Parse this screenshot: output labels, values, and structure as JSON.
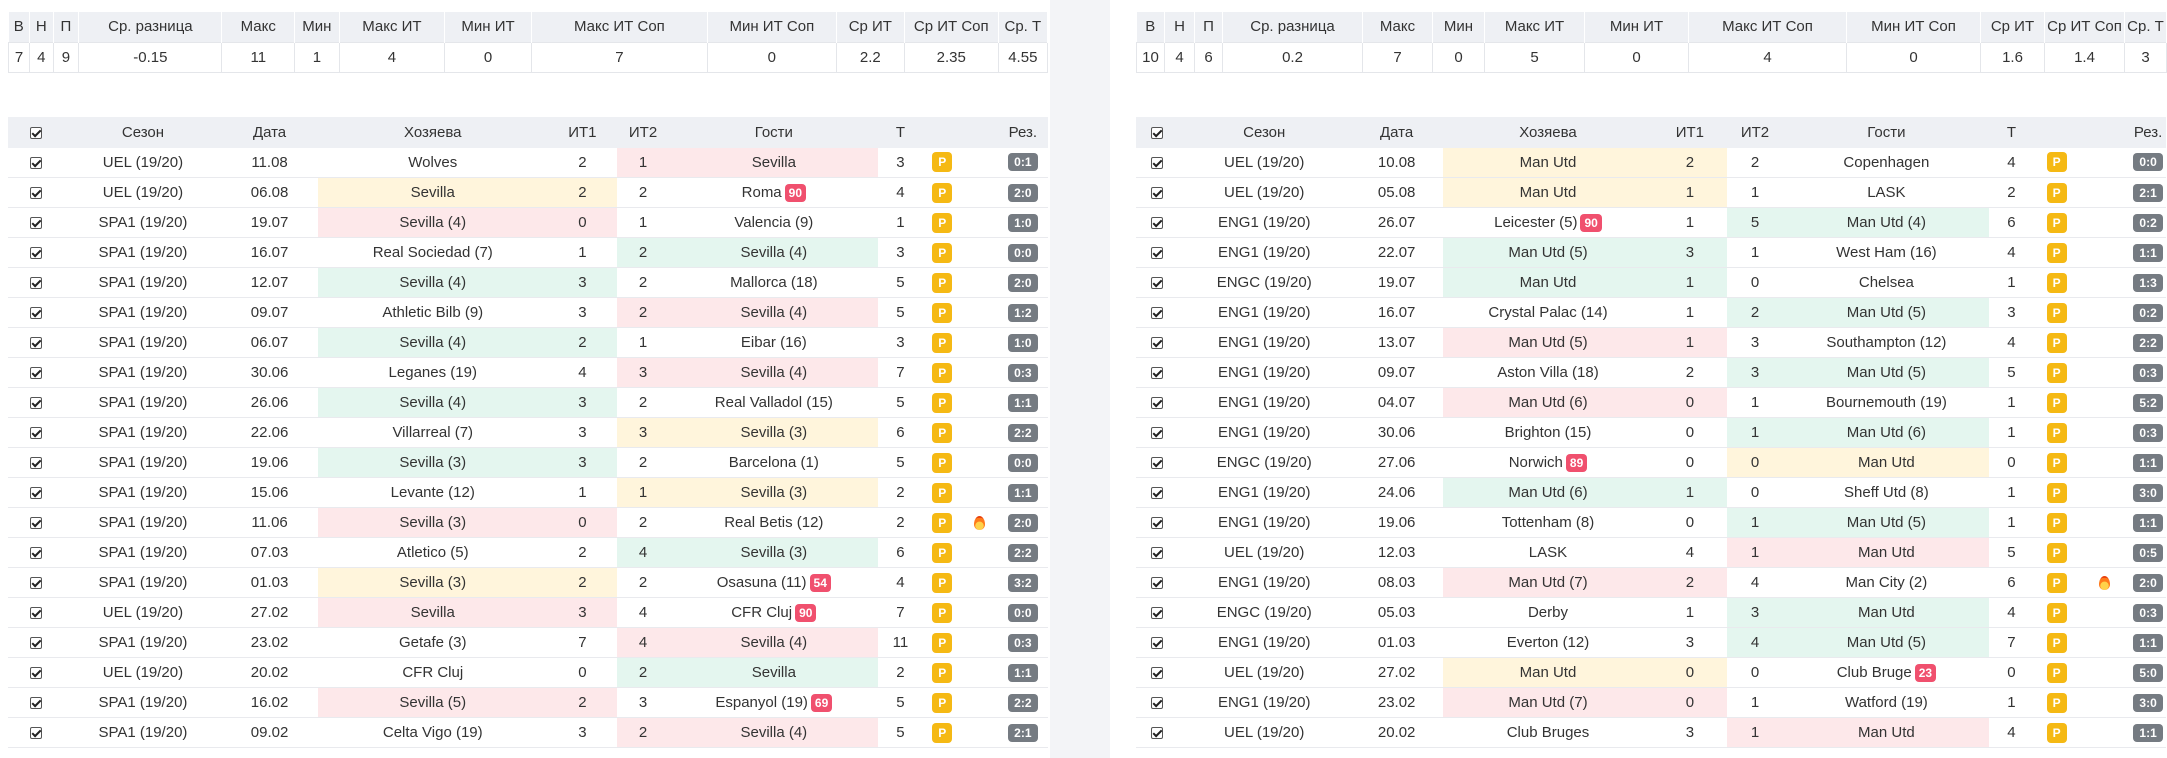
{
  "left": {
    "summary_headers": [
      "В",
      "Н",
      "П",
      "Ср. разница",
      "Макс",
      "Мин",
      "Макс ИТ",
      "Мин ИТ",
      "Макс ИТ Соп",
      "Мин ИТ Соп",
      "Ср ИТ",
      "Ср ИТ Соп",
      "Ср. Т"
    ],
    "summary_values": [
      "7",
      "4",
      "9",
      "-0.15",
      "11",
      "1",
      "4",
      "0",
      "7",
      "0",
      "2.2",
      "2.35",
      "4.55"
    ],
    "game_headers": [
      "Сезон",
      "Дата",
      "Хозяева",
      "ИТ1",
      "ИТ2",
      "Гости",
      "Т",
      "Рез."
    ],
    "rows": [
      {
        "season": "UEL (19/20)",
        "date": "11.08",
        "home": "Wolves",
        "home_hl": "",
        "home_badge": "",
        "it1": "2",
        "it1_hl": "",
        "it2": "1",
        "it2_hl": "r",
        "away": "Sevilla",
        "away_hl": "r",
        "away_badge": "",
        "t": "3",
        "fire": false,
        "res": "0:1"
      },
      {
        "season": "UEL (19/20)",
        "date": "06.08",
        "home": "Sevilla",
        "home_hl": "y",
        "home_badge": "",
        "it1": "2",
        "it1_hl": "y",
        "it2": "2",
        "it2_hl": "",
        "away": "Roma",
        "away_hl": "",
        "away_badge": "90",
        "t": "4",
        "fire": false,
        "res": "2:0"
      },
      {
        "season": "SPA1 (19/20)",
        "date": "19.07",
        "home": "Sevilla (4)",
        "home_hl": "r",
        "home_badge": "",
        "it1": "0",
        "it1_hl": "r",
        "it2": "1",
        "it2_hl": "",
        "away": "Valencia (9)",
        "away_hl": "",
        "away_badge": "",
        "t": "1",
        "fire": false,
        "res": "1:0"
      },
      {
        "season": "SPA1 (19/20)",
        "date": "16.07",
        "home": "Real Sociedad (7)",
        "home_hl": "",
        "home_badge": "",
        "it1": "1",
        "it1_hl": "",
        "it2": "2",
        "it2_hl": "g",
        "away": "Sevilla (4)",
        "away_hl": "g",
        "away_badge": "",
        "t": "3",
        "fire": false,
        "res": "0:0"
      },
      {
        "season": "SPA1 (19/20)",
        "date": "12.07",
        "home": "Sevilla (4)",
        "home_hl": "g",
        "home_badge": "",
        "it1": "3",
        "it1_hl": "g",
        "it2": "2",
        "it2_hl": "",
        "away": "Mallorca (18)",
        "away_hl": "",
        "away_badge": "",
        "t": "5",
        "fire": false,
        "res": "2:0"
      },
      {
        "season": "SPA1 (19/20)",
        "date": "09.07",
        "home": "Athletic Bilb (9)",
        "home_hl": "",
        "home_badge": "",
        "it1": "3",
        "it1_hl": "",
        "it2": "2",
        "it2_hl": "r",
        "away": "Sevilla (4)",
        "away_hl": "r",
        "away_badge": "",
        "t": "5",
        "fire": false,
        "res": "1:2"
      },
      {
        "season": "SPA1 (19/20)",
        "date": "06.07",
        "home": "Sevilla (4)",
        "home_hl": "g",
        "home_badge": "",
        "it1": "2",
        "it1_hl": "g",
        "it2": "1",
        "it2_hl": "",
        "away": "Eibar (16)",
        "away_hl": "",
        "away_badge": "",
        "t": "3",
        "fire": false,
        "res": "1:0"
      },
      {
        "season": "SPA1 (19/20)",
        "date": "30.06",
        "home": "Leganes (19)",
        "home_hl": "",
        "home_badge": "",
        "it1": "4",
        "it1_hl": "",
        "it2": "3",
        "it2_hl": "r",
        "away": "Sevilla (4)",
        "away_hl": "r",
        "away_badge": "",
        "t": "7",
        "fire": false,
        "res": "0:3"
      },
      {
        "season": "SPA1 (19/20)",
        "date": "26.06",
        "home": "Sevilla (4)",
        "home_hl": "g",
        "home_badge": "",
        "it1": "3",
        "it1_hl": "g",
        "it2": "2",
        "it2_hl": "",
        "away": "Real Valladol (15)",
        "away_hl": "",
        "away_badge": "",
        "t": "5",
        "fire": false,
        "res": "1:1"
      },
      {
        "season": "SPA1 (19/20)",
        "date": "22.06",
        "home": "Villarreal (7)",
        "home_hl": "",
        "home_badge": "",
        "it1": "3",
        "it1_hl": "",
        "it2": "3",
        "it2_hl": "y",
        "away": "Sevilla (3)",
        "away_hl": "y",
        "away_badge": "",
        "t": "6",
        "fire": false,
        "res": "2:2"
      },
      {
        "season": "SPA1 (19/20)",
        "date": "19.06",
        "home": "Sevilla (3)",
        "home_hl": "g",
        "home_badge": "",
        "it1": "3",
        "it1_hl": "g",
        "it2": "2",
        "it2_hl": "",
        "away": "Barcelona (1)",
        "away_hl": "",
        "away_badge": "",
        "t": "5",
        "fire": false,
        "res": "0:0"
      },
      {
        "season": "SPA1 (19/20)",
        "date": "15.06",
        "home": "Levante (12)",
        "home_hl": "",
        "home_badge": "",
        "it1": "1",
        "it1_hl": "",
        "it2": "1",
        "it2_hl": "y",
        "away": "Sevilla (3)",
        "away_hl": "y",
        "away_badge": "",
        "t": "2",
        "fire": false,
        "res": "1:1"
      },
      {
        "season": "SPA1 (19/20)",
        "date": "11.06",
        "home": "Sevilla (3)",
        "home_hl": "r",
        "home_badge": "",
        "it1": "0",
        "it1_hl": "r",
        "it2": "2",
        "it2_hl": "",
        "away": "Real Betis (12)",
        "away_hl": "",
        "away_badge": "",
        "t": "2",
        "fire": true,
        "res": "2:0"
      },
      {
        "season": "SPA1 (19/20)",
        "date": "07.03",
        "home": "Atletico (5)",
        "home_hl": "",
        "home_badge": "",
        "it1": "2",
        "it1_hl": "",
        "it2": "4",
        "it2_hl": "g",
        "away": "Sevilla (3)",
        "away_hl": "g",
        "away_badge": "",
        "t": "6",
        "fire": false,
        "res": "2:2"
      },
      {
        "season": "SPA1 (19/20)",
        "date": "01.03",
        "home": "Sevilla (3)",
        "home_hl": "y",
        "home_badge": "",
        "it1": "2",
        "it1_hl": "y",
        "it2": "2",
        "it2_hl": "",
        "away": "Osasuna (11)",
        "away_hl": "",
        "away_badge": "54",
        "t": "4",
        "fire": false,
        "res": "3:2"
      },
      {
        "season": "UEL (19/20)",
        "date": "27.02",
        "home": "Sevilla",
        "home_hl": "r",
        "home_badge": "",
        "it1": "3",
        "it1_hl": "r",
        "it2": "4",
        "it2_hl": "",
        "away": "CFR Cluj",
        "away_hl": "",
        "away_badge": "90",
        "t": "7",
        "fire": false,
        "res": "0:0"
      },
      {
        "season": "SPA1 (19/20)",
        "date": "23.02",
        "home": "Getafe (3)",
        "home_hl": "",
        "home_badge": "",
        "it1": "7",
        "it1_hl": "",
        "it2": "4",
        "it2_hl": "r",
        "away": "Sevilla (4)",
        "away_hl": "r",
        "away_badge": "",
        "t": "11",
        "fire": false,
        "res": "0:3"
      },
      {
        "season": "UEL (19/20)",
        "date": "20.02",
        "home": "CFR Cluj",
        "home_hl": "",
        "home_badge": "",
        "it1": "0",
        "it1_hl": "",
        "it2": "2",
        "it2_hl": "g",
        "away": "Sevilla",
        "away_hl": "g",
        "away_badge": "",
        "t": "2",
        "fire": false,
        "res": "1:1"
      },
      {
        "season": "SPA1 (19/20)",
        "date": "16.02",
        "home": "Sevilla (5)",
        "home_hl": "r",
        "home_badge": "",
        "it1": "2",
        "it1_hl": "r",
        "it2": "3",
        "it2_hl": "",
        "away": "Espanyol (19)",
        "away_hl": "",
        "away_badge": "69",
        "t": "5",
        "fire": false,
        "res": "2:2"
      },
      {
        "season": "SPA1 (19/20)",
        "date": "09.02",
        "home": "Celta Vigo (19)",
        "home_hl": "",
        "home_badge": "",
        "it1": "3",
        "it1_hl": "",
        "it2": "2",
        "it2_hl": "r",
        "away": "Sevilla (4)",
        "away_hl": "r",
        "away_badge": "",
        "t": "5",
        "fire": false,
        "res": "2:1"
      }
    ]
  },
  "right": {
    "summary_headers": [
      "В",
      "Н",
      "П",
      "Ср. разница",
      "Макс",
      "Мин",
      "Макс ИТ",
      "Мин ИТ",
      "Макс ИТ Соп",
      "Мин ИТ Соп",
      "Ср ИТ",
      "Ср ИТ Соп",
      "Ср. Т"
    ],
    "summary_values": [
      "10",
      "4",
      "6",
      "0.2",
      "7",
      "0",
      "5",
      "0",
      "4",
      "0",
      "1.6",
      "1.4",
      "3"
    ],
    "game_headers": [
      "Сезон",
      "Дата",
      "Хозяева",
      "ИТ1",
      "ИТ2",
      "Гости",
      "Т",
      "Рез."
    ],
    "rows": [
      {
        "season": "UEL (19/20)",
        "date": "10.08",
        "home": "Man Utd",
        "home_hl": "y",
        "home_badge": "",
        "it1": "2",
        "it1_hl": "y",
        "it2": "2",
        "it2_hl": "",
        "away": "Copenhagen",
        "away_hl": "",
        "away_badge": "",
        "t": "4",
        "fire": false,
        "res": "0:0"
      },
      {
        "season": "UEL (19/20)",
        "date": "05.08",
        "home": "Man Utd",
        "home_hl": "y",
        "home_badge": "",
        "it1": "1",
        "it1_hl": "y",
        "it2": "1",
        "it2_hl": "",
        "away": "LASK",
        "away_hl": "",
        "away_badge": "",
        "t": "2",
        "fire": false,
        "res": "2:1"
      },
      {
        "season": "ENG1 (19/20)",
        "date": "26.07",
        "home": "Leicester (5)",
        "home_hl": "",
        "home_badge": "90",
        "it1": "1",
        "it1_hl": "",
        "it2": "5",
        "it2_hl": "g",
        "away": "Man Utd (4)",
        "away_hl": "g",
        "away_badge": "",
        "t": "6",
        "fire": false,
        "res": "0:2"
      },
      {
        "season": "ENG1 (19/20)",
        "date": "22.07",
        "home": "Man Utd (5)",
        "home_hl": "g",
        "home_badge": "",
        "it1": "3",
        "it1_hl": "g",
        "it2": "1",
        "it2_hl": "",
        "away": "West Ham (16)",
        "away_hl": "",
        "away_badge": "",
        "t": "4",
        "fire": false,
        "res": "1:1"
      },
      {
        "season": "ENGC (19/20)",
        "date": "19.07",
        "home": "Man Utd",
        "home_hl": "g",
        "home_badge": "",
        "it1": "1",
        "it1_hl": "g",
        "it2": "0",
        "it2_hl": "",
        "away": "Chelsea",
        "away_hl": "",
        "away_badge": "",
        "t": "1",
        "fire": false,
        "res": "1:3"
      },
      {
        "season": "ENG1 (19/20)",
        "date": "16.07",
        "home": "Crystal Palac (14)",
        "home_hl": "",
        "home_badge": "",
        "it1": "1",
        "it1_hl": "",
        "it2": "2",
        "it2_hl": "g",
        "away": "Man Utd (5)",
        "away_hl": "g",
        "away_badge": "",
        "t": "3",
        "fire": false,
        "res": "0:2"
      },
      {
        "season": "ENG1 (19/20)",
        "date": "13.07",
        "home": "Man Utd (5)",
        "home_hl": "r",
        "home_badge": "",
        "it1": "1",
        "it1_hl": "r",
        "it2": "3",
        "it2_hl": "",
        "away": "Southampton (12)",
        "away_hl": "",
        "away_badge": "",
        "t": "4",
        "fire": false,
        "res": "2:2"
      },
      {
        "season": "ENG1 (19/20)",
        "date": "09.07",
        "home": "Aston Villa (18)",
        "home_hl": "",
        "home_badge": "",
        "it1": "2",
        "it1_hl": "",
        "it2": "3",
        "it2_hl": "g",
        "away": "Man Utd (5)",
        "away_hl": "g",
        "away_badge": "",
        "t": "5",
        "fire": false,
        "res": "0:3"
      },
      {
        "season": "ENG1 (19/20)",
        "date": "04.07",
        "home": "Man Utd (6)",
        "home_hl": "r",
        "home_badge": "",
        "it1": "0",
        "it1_hl": "r",
        "it2": "1",
        "it2_hl": "",
        "away": "Bournemouth (19)",
        "away_hl": "",
        "away_badge": "",
        "t": "1",
        "fire": false,
        "res": "5:2"
      },
      {
        "season": "ENG1 (19/20)",
        "date": "30.06",
        "home": "Brighton (15)",
        "home_hl": "",
        "home_badge": "",
        "it1": "0",
        "it1_hl": "",
        "it2": "1",
        "it2_hl": "g",
        "away": "Man Utd (6)",
        "away_hl": "g",
        "away_badge": "",
        "t": "1",
        "fire": false,
        "res": "0:3"
      },
      {
        "season": "ENGC (19/20)",
        "date": "27.06",
        "home": "Norwich",
        "home_hl": "",
        "home_badge": "89",
        "it1": "0",
        "it1_hl": "",
        "it2": "0",
        "it2_hl": "y",
        "away": "Man Utd",
        "away_hl": "y",
        "away_badge": "",
        "t": "0",
        "fire": false,
        "res": "1:1"
      },
      {
        "season": "ENG1 (19/20)",
        "date": "24.06",
        "home": "Man Utd (6)",
        "home_hl": "g",
        "home_badge": "",
        "it1": "1",
        "it1_hl": "g",
        "it2": "0",
        "it2_hl": "",
        "away": "Sheff Utd (8)",
        "away_hl": "",
        "away_badge": "",
        "t": "1",
        "fire": false,
        "res": "3:0"
      },
      {
        "season": "ENG1 (19/20)",
        "date": "19.06",
        "home": "Tottenham (8)",
        "home_hl": "",
        "home_badge": "",
        "it1": "0",
        "it1_hl": "",
        "it2": "1",
        "it2_hl": "g",
        "away": "Man Utd (5)",
        "away_hl": "g",
        "away_badge": "",
        "t": "1",
        "fire": false,
        "res": "1:1"
      },
      {
        "season": "UEL (19/20)",
        "date": "12.03",
        "home": "LASK",
        "home_hl": "",
        "home_badge": "",
        "it1": "4",
        "it1_hl": "",
        "it2": "1",
        "it2_hl": "r",
        "away": "Man Utd",
        "away_hl": "r",
        "away_badge": "",
        "t": "5",
        "fire": false,
        "res": "0:5"
      },
      {
        "season": "ENG1 (19/20)",
        "date": "08.03",
        "home": "Man Utd (7)",
        "home_hl": "r",
        "home_badge": "",
        "it1": "2",
        "it1_hl": "r",
        "it2": "4",
        "it2_hl": "",
        "away": "Man City (2)",
        "away_hl": "",
        "away_badge": "",
        "t": "6",
        "fire": true,
        "res": "2:0"
      },
      {
        "season": "ENGC (19/20)",
        "date": "05.03",
        "home": "Derby",
        "home_hl": "",
        "home_badge": "",
        "it1": "1",
        "it1_hl": "",
        "it2": "3",
        "it2_hl": "g",
        "away": "Man Utd",
        "away_hl": "g",
        "away_badge": "",
        "t": "4",
        "fire": false,
        "res": "0:3"
      },
      {
        "season": "ENG1 (19/20)",
        "date": "01.03",
        "home": "Everton (12)",
        "home_hl": "",
        "home_badge": "",
        "it1": "3",
        "it1_hl": "",
        "it2": "4",
        "it2_hl": "g",
        "away": "Man Utd (5)",
        "away_hl": "g",
        "away_badge": "",
        "t": "7",
        "fire": false,
        "res": "1:1"
      },
      {
        "season": "UEL (19/20)",
        "date": "27.02",
        "home": "Man Utd",
        "home_hl": "y",
        "home_badge": "",
        "it1": "0",
        "it1_hl": "y",
        "it2": "0",
        "it2_hl": "",
        "away": "Club Bruge",
        "away_hl": "",
        "away_badge": "23",
        "t": "0",
        "fire": false,
        "res": "5:0"
      },
      {
        "season": "ENG1 (19/20)",
        "date": "23.02",
        "home": "Man Utd (7)",
        "home_hl": "r",
        "home_badge": "",
        "it1": "0",
        "it1_hl": "r",
        "it2": "1",
        "it2_hl": "",
        "away": "Watford (19)",
        "away_hl": "",
        "away_badge": "",
        "t": "1",
        "fire": false,
        "res": "3:0"
      },
      {
        "season": "UEL (19/20)",
        "date": "20.02",
        "home": "Club Bruges",
        "home_hl": "",
        "home_badge": "",
        "it1": "3",
        "it1_hl": "",
        "it2": "1",
        "it2_hl": "r",
        "away": "Man Utd",
        "away_hl": "r",
        "away_badge": "",
        "t": "4",
        "fire": false,
        "res": "1:1"
      }
    ]
  },
  "badge_label": "P"
}
